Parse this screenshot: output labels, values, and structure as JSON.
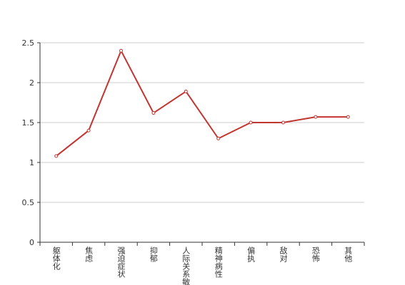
{
  "chart_data": {
    "type": "line",
    "categories": [
      "躯体化",
      "焦虑",
      "强迫症状",
      "抑郁",
      "人际关系敏感",
      "精神病性",
      "偏执",
      "敌对",
      "恐怖",
      "其他"
    ],
    "series": [
      {
        "color": "#c23531",
        "values": [
          1.08,
          1.4,
          2.4,
          1.62,
          1.89,
          1.3,
          1.5,
          1.5,
          1.57,
          1.57
        ]
      }
    ],
    "ylim": [
      0,
      2.5
    ],
    "yticks": [
      0,
      0.5,
      1,
      1.5,
      2,
      2.5
    ],
    "grid": true
  }
}
